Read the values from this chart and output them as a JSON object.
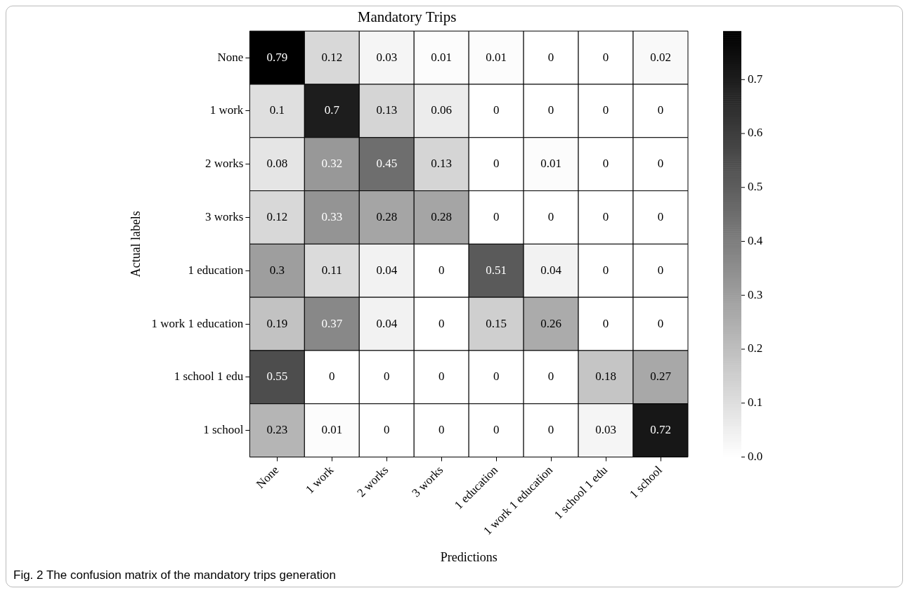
{
  "chart_data": {
    "type": "heatmap",
    "title": "Mandatory Trips",
    "xlabel": "Predictions",
    "ylabel": "Actual labels",
    "categories": [
      "None",
      "1 work",
      "2 works",
      "3 works",
      "1 education",
      "1 work 1 education",
      "1 school 1 edu",
      "1 school"
    ],
    "y_categories": [
      "None",
      "1 work",
      "2 works",
      "3 works",
      "1 education",
      "1 work 1 education",
      "1 school 1 edu",
      "1 school"
    ],
    "cells": [
      [
        0.79,
        0.12,
        0.03,
        0.01,
        0.01,
        0,
        0,
        0.02
      ],
      [
        0.1,
        0.7,
        0.13,
        0.06,
        0,
        0,
        0,
        0
      ],
      [
        0.08,
        0.32,
        0.45,
        0.13,
        0,
        0.01,
        0,
        0
      ],
      [
        0.12,
        0.33,
        0.28,
        0.28,
        0,
        0,
        0,
        0
      ],
      [
        0.3,
        0.11,
        0.04,
        0,
        0.51,
        0.04,
        0,
        0
      ],
      [
        0.19,
        0.37,
        0.04,
        0,
        0.15,
        0.26,
        0,
        0
      ],
      [
        0.55,
        0,
        0,
        0,
        0,
        0,
        0.18,
        0.27
      ],
      [
        0.23,
        0.01,
        0,
        0,
        0,
        0,
        0.03,
        0.72
      ]
    ],
    "data_labels": true,
    "clim": [
      0,
      0.79
    ],
    "cticks": [
      {
        "value": 0,
        "label": "0.0"
      },
      0.1,
      0.2,
      0.3,
      0.4,
      0.5,
      0.6,
      0.7
    ],
    "annotations": [
      "Fig. 2 The confusion matrix of the mandatory trips generation"
    ]
  }
}
